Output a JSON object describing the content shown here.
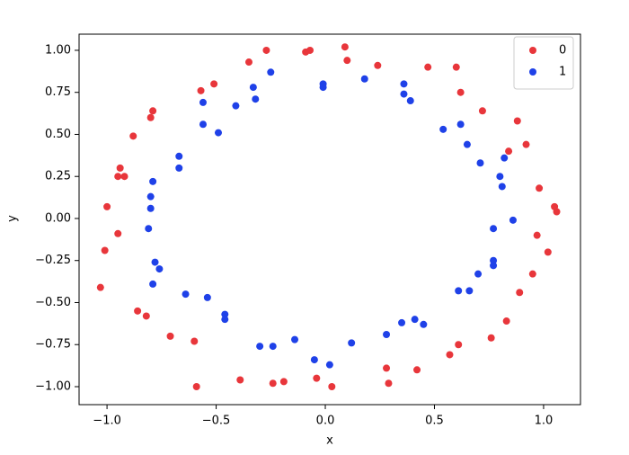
{
  "chart_data": {
    "type": "scatter",
    "x_label": "x",
    "y_label": "y",
    "xlim": [
      -1.128,
      1.169
    ],
    "ylim": [
      -1.107,
      1.096
    ],
    "xticks": [
      {
        "value": -1,
        "label": "−1.0"
      },
      {
        "value": -0.5,
        "label": "−0.5"
      },
      {
        "value": 0,
        "label": "0.0"
      },
      {
        "value": 0.5,
        "label": "0.5"
      },
      {
        "value": 1,
        "label": "1.0"
      }
    ],
    "yticks": [
      {
        "value": -1,
        "label": "−1.00"
      },
      {
        "value": -0.75,
        "label": "−0.75"
      },
      {
        "value": -0.5,
        "label": "−0.50"
      },
      {
        "value": -0.25,
        "label": "−0.25"
      },
      {
        "value": 0,
        "label": "0.00"
      },
      {
        "value": 0.25,
        "label": "0.25"
      },
      {
        "value": 0.5,
        "label": "0.50"
      },
      {
        "value": 0.75,
        "label": "0.75"
      },
      {
        "value": 1,
        "label": "1.00"
      }
    ],
    "legend": "upper right",
    "series": [
      {
        "name": "0",
        "color": "#e8363b",
        "x": [
          -0.27,
          -0.09,
          -0.07,
          0.09,
          0.1,
          0.24,
          0.47,
          0.6,
          0.62,
          0.72,
          0.88,
          0.92,
          0.84,
          0.98,
          1.05,
          1.06,
          0.97,
          1.02,
          0.95,
          0.89,
          0.83,
          0.76,
          0.61,
          0.57,
          0.42,
          0.28,
          0.29,
          0.03,
          -0.04,
          -0.19,
          -0.24,
          -0.39,
          -0.59,
          -0.6,
          -0.71,
          -0.82,
          -0.86,
          -1.03,
          -1.01,
          -0.95,
          -1.0,
          -0.92,
          -0.95,
          -0.94,
          -0.88,
          -0.8,
          -0.79,
          -0.57,
          -0.51,
          -0.35
        ],
        "y": [
          1.0,
          0.99,
          1.0,
          1.02,
          0.94,
          0.91,
          0.9,
          0.9,
          0.75,
          0.64,
          0.58,
          0.44,
          0.4,
          0.18,
          0.07,
          0.04,
          -0.1,
          -0.2,
          -0.33,
          -0.44,
          -0.61,
          -0.71,
          -0.75,
          -0.81,
          -0.9,
          -0.89,
          -0.98,
          -1.0,
          -0.95,
          -0.97,
          -0.98,
          -0.96,
          -1.0,
          -0.73,
          -0.7,
          -0.58,
          -0.55,
          -0.41,
          -0.19,
          -0.09,
          0.07,
          0.25,
          0.25,
          0.3,
          0.49,
          0.6,
          0.64,
          0.76,
          0.8,
          0.93
        ]
      },
      {
        "name": "1",
        "color": "#1f41e8",
        "x": [
          -0.25,
          -0.33,
          -0.32,
          -0.41,
          -0.56,
          -0.56,
          -0.49,
          -0.67,
          -0.67,
          -0.79,
          -0.8,
          -0.8,
          -0.81,
          -0.78,
          -0.76,
          -0.79,
          -0.64,
          -0.54,
          -0.46,
          -0.46,
          -0.3,
          -0.24,
          -0.14,
          -0.05,
          0.02,
          0.12,
          0.28,
          0.35,
          0.41,
          0.45,
          0.61,
          0.66,
          0.7,
          0.77,
          0.77,
          0.77,
          0.86,
          0.81,
          0.8,
          0.82,
          0.71,
          0.65,
          0.62,
          0.54,
          0.39,
          0.36,
          0.36,
          0.18,
          -0.01,
          -0.01
        ],
        "y": [
          0.87,
          0.78,
          0.71,
          0.67,
          0.69,
          0.56,
          0.51,
          0.37,
          0.3,
          0.22,
          0.13,
          0.06,
          -0.06,
          -0.26,
          -0.3,
          -0.39,
          -0.45,
          -0.47,
          -0.57,
          -0.6,
          -0.76,
          -0.76,
          -0.72,
          -0.84,
          -0.87,
          -0.74,
          -0.69,
          -0.62,
          -0.6,
          -0.63,
          -0.43,
          -0.43,
          -0.33,
          -0.28,
          -0.25,
          -0.06,
          -0.01,
          0.19,
          0.25,
          0.36,
          0.33,
          0.44,
          0.56,
          0.53,
          0.7,
          0.74,
          0.8,
          0.83,
          0.78,
          0.8
        ]
      }
    ]
  }
}
